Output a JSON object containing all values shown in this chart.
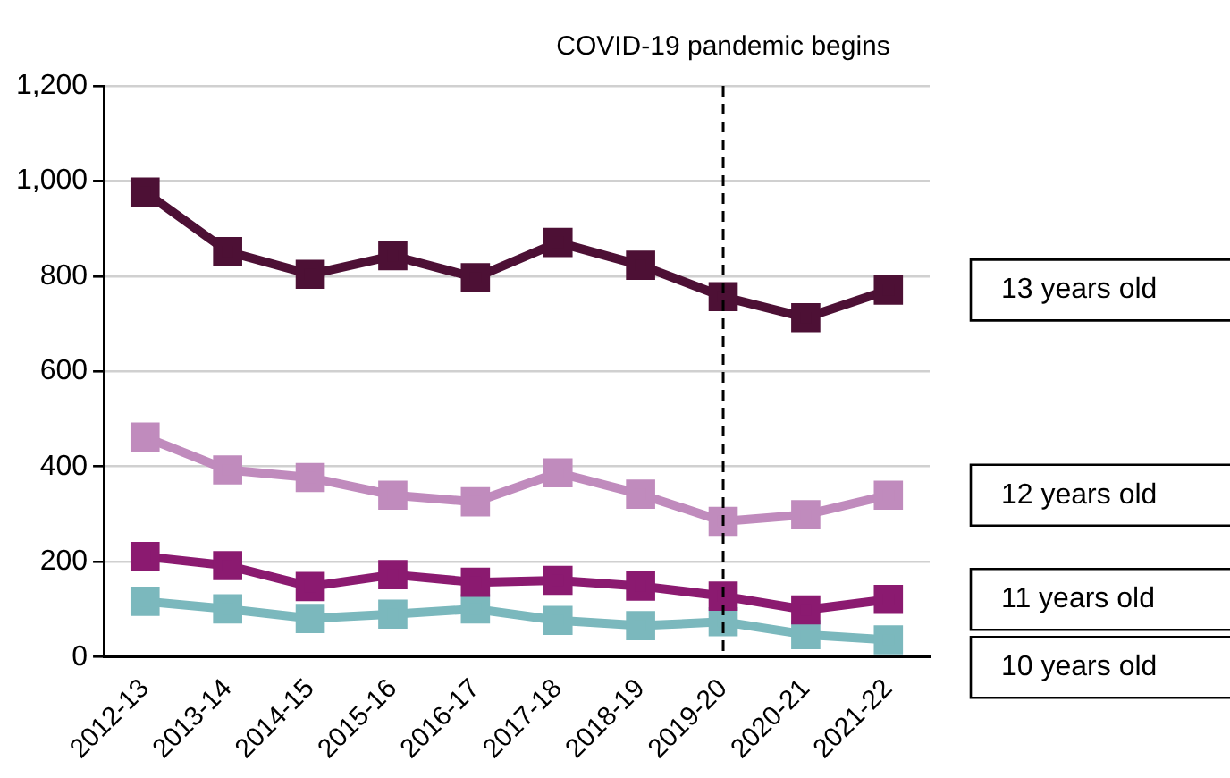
{
  "chart_data": {
    "type": "line",
    "categories": [
      "2012-13",
      "2013-14",
      "2014-15",
      "2015-16",
      "2016-17",
      "2017-18",
      "2018-19",
      "2019-20",
      "2020-21",
      "2021-22"
    ],
    "series": [
      {
        "name": "13 years old",
        "color": "#4d1035",
        "values": [
          977,
          852,
          804,
          843,
          797,
          871,
          823,
          757,
          713,
          771
        ]
      },
      {
        "name": "12 years old",
        "color": "#c08bbd",
        "values": [
          462,
          393,
          377,
          340,
          326,
          387,
          342,
          285,
          299,
          340
        ]
      },
      {
        "name": "11 years old",
        "color": "#8b1a70",
        "values": [
          211,
          192,
          148,
          173,
          157,
          161,
          149,
          128,
          99,
          121
        ]
      },
      {
        "name": "10 years old",
        "color": "#7bb8bd",
        "values": [
          117,
          101,
          81,
          90,
          101,
          77,
          66,
          74,
          47,
          36
        ]
      }
    ],
    "ylim": [
      0,
      1200
    ],
    "yticks": [
      {
        "value": 0,
        "label": "0"
      },
      {
        "value": 200,
        "label": "200"
      },
      {
        "value": 400,
        "label": "400"
      },
      {
        "value": 600,
        "label": "600"
      },
      {
        "value": 800,
        "label": "800"
      },
      {
        "value": 1000,
        "label": "1,000"
      },
      {
        "value": 1200,
        "label": "1,200"
      }
    ],
    "grid": "y",
    "legend": false,
    "marker": "square",
    "line_style": "solid",
    "ref_lines": [
      {
        "axis": "x",
        "value": "2019-20",
        "label": "COVID-19 pandemic begins",
        "line_style": "dashed"
      }
    ]
  }
}
